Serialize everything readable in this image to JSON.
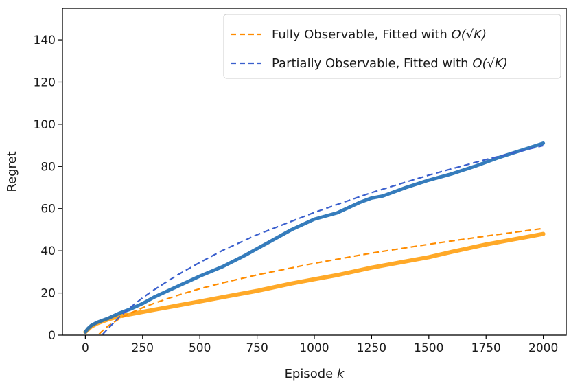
{
  "chart_data": {
    "type": "line",
    "title": "",
    "xlabel_text": "Episode ",
    "xlabel_var": "k",
    "ylabel": "Regret",
    "xlim": [
      -100,
      2100
    ],
    "ylim": [
      0,
      155
    ],
    "xticks": [
      0,
      250,
      500,
      750,
      1000,
      1250,
      1500,
      1750,
      2000
    ],
    "yticks": [
      0,
      20,
      40,
      60,
      80,
      100,
      120,
      140
    ],
    "grid": false,
    "legend_position": "top-right",
    "legend": [
      {
        "text": "Fully Observable, Fitted with ",
        "math": "O(√K)",
        "color": "#ff8c00"
      },
      {
        "text": "Partially Observable, Fitted with ",
        "math": "O(√K)",
        "color": "#3a5fcd"
      }
    ],
    "series": [
      {
        "color": "#ffa011",
        "style": "solid",
        "width": 6,
        "x": [
          0,
          25,
          50,
          100,
          150,
          200,
          250,
          300,
          400,
          500,
          600,
          750,
          900,
          1000,
          1100,
          1250,
          1400,
          1500,
          1600,
          1750,
          1900,
          2000
        ],
        "y": [
          1.5,
          4.0,
          5.5,
          7.5,
          9.0,
          10.0,
          11.0,
          12.0,
          14.0,
          16.0,
          18.0,
          21.0,
          24.5,
          26.5,
          28.5,
          32.0,
          35.0,
          37.0,
          39.5,
          43.0,
          46.0,
          48.0
        ]
      },
      {
        "color": "#1f6eb5",
        "style": "solid",
        "width": 5,
        "x": [
          0,
          10,
          25,
          50,
          100,
          150,
          200,
          250,
          300,
          350,
          400,
          450,
          500,
          600,
          700,
          750,
          800,
          900,
          1000,
          1100,
          1200,
          1250,
          1300,
          1400,
          1500,
          1600,
          1700,
          1750,
          1800,
          1900,
          2000
        ],
        "y": [
          1.5,
          3.0,
          4.5,
          6.0,
          8.0,
          10.5,
          12.5,
          15.0,
          18.0,
          20.5,
          23.0,
          25.5,
          28.0,
          32.5,
          38.0,
          41.0,
          44.0,
          50.0,
          55.0,
          58.0,
          63.0,
          65.0,
          66.0,
          70.0,
          73.5,
          76.5,
          80.0,
          82.0,
          84.0,
          87.5,
          91.0
        ]
      },
      {
        "color": "#ff8c00",
        "style": "dashed",
        "width": 2.2,
        "x": [
          60,
          80,
          100,
          150,
          200,
          250,
          300,
          400,
          500,
          600,
          750,
          1000,
          1250,
          1500,
          1750,
          2000
        ],
        "y": [
          0.5,
          2.6,
          4.4,
          7.9,
          10.6,
          13.0,
          15.1,
          18.8,
          22.0,
          24.8,
          28.6,
          34.1,
          38.9,
          43.1,
          47.0,
          50.6
        ]
      },
      {
        "color": "#3a5fcd",
        "style": "dashed",
        "width": 2.2,
        "x": [
          75,
          100,
          150,
          200,
          250,
          300,
          400,
          500,
          600,
          750,
          1000,
          1250,
          1500,
          1750,
          2000
        ],
        "y": [
          0.3,
          3.2,
          8.8,
          13.4,
          17.7,
          21.5,
          28.4,
          34.5,
          40.2,
          47.6,
          58.2,
          67.6,
          75.9,
          83.3,
          89.9
        ]
      }
    ]
  }
}
